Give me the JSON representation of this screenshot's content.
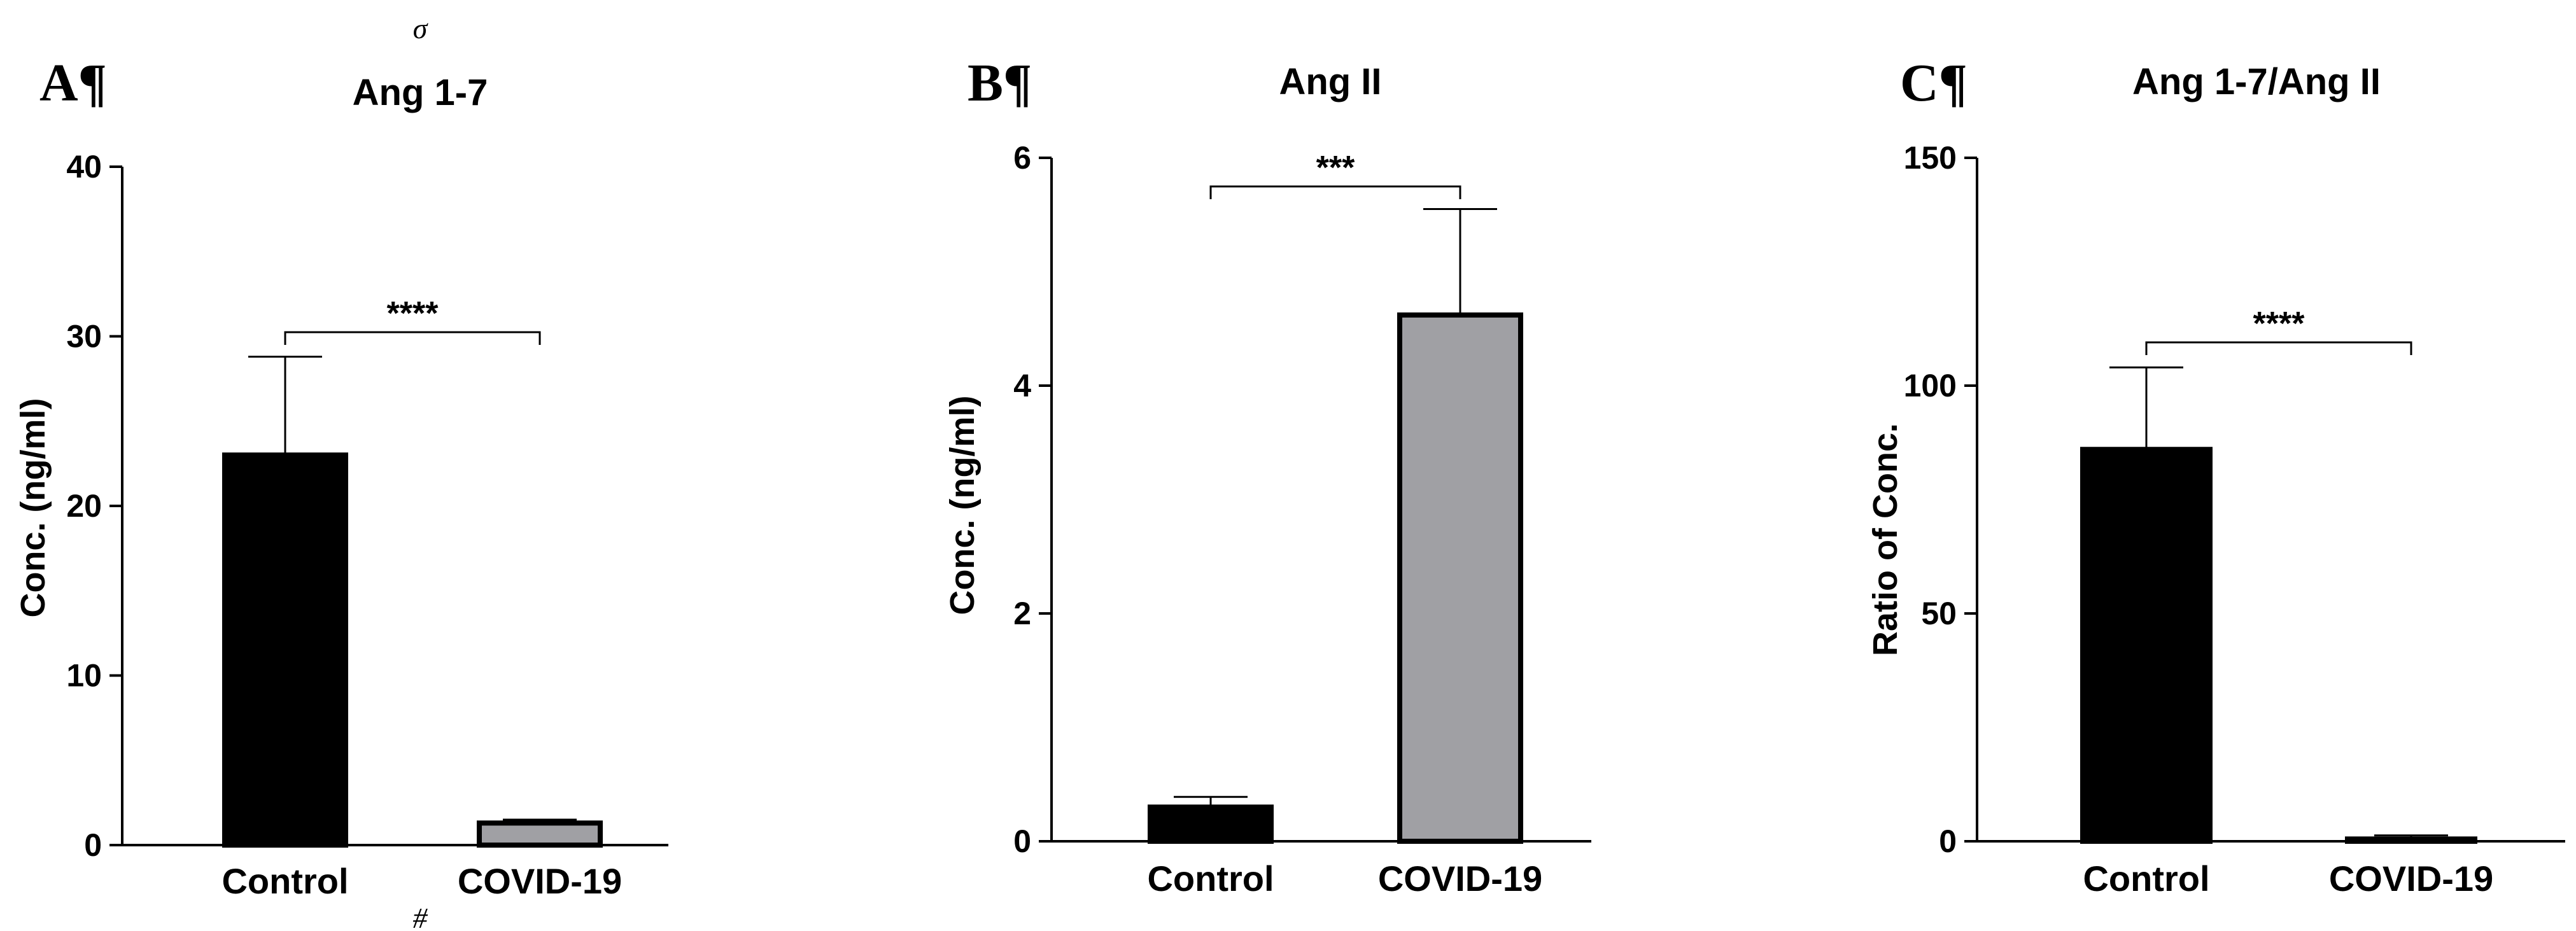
{
  "colors": {
    "control": "#000000",
    "covid": "#a0a0a4",
    "axis": "#000000"
  },
  "page_marks": {
    "top": "σ",
    "bottom": "#"
  },
  "chart_data": [
    {
      "type": "bar",
      "panel_label": "A¶",
      "title": "Ang 1-7",
      "ylabel": "Conc. (ng/ml)",
      "xlabel": "",
      "ylim": [
        0,
        40
      ],
      "yticks": [
        "0",
        "10",
        "20",
        "30",
        "40"
      ],
      "categories": [
        "Control",
        "COVID-19"
      ],
      "values": [
        23.0,
        1.3
      ],
      "errors": [
        5.8,
        0.2
      ],
      "significance": {
        "label": "****",
        "pair": [
          0,
          1
        ]
      }
    },
    {
      "type": "bar",
      "panel_label": "B¶",
      "title": "Ang II",
      "ylabel": "Conc. (ng/ml)",
      "xlabel": "",
      "ylim": [
        0,
        6
      ],
      "yticks": [
        "0",
        "2",
        "4",
        "6"
      ],
      "categories": [
        "Control",
        "COVID-19"
      ],
      "values": [
        0.3,
        4.62
      ],
      "errors": [
        0.09,
        0.93
      ],
      "significance": {
        "label": "***",
        "pair": [
          0,
          1
        ]
      }
    },
    {
      "type": "bar",
      "panel_label": "C¶",
      "title": "Ang 1-7/Ang II",
      "ylabel": "Ratio of Conc.",
      "xlabel": "",
      "ylim": [
        0,
        150
      ],
      "yticks": [
        "0",
        "50",
        "100",
        "150"
      ],
      "categories": [
        "Control",
        "COVID-19"
      ],
      "values": [
        86,
        0.5
      ],
      "errors": [
        18,
        0.8
      ],
      "significance": {
        "label": "****",
        "pair": [
          0,
          1
        ]
      }
    }
  ]
}
